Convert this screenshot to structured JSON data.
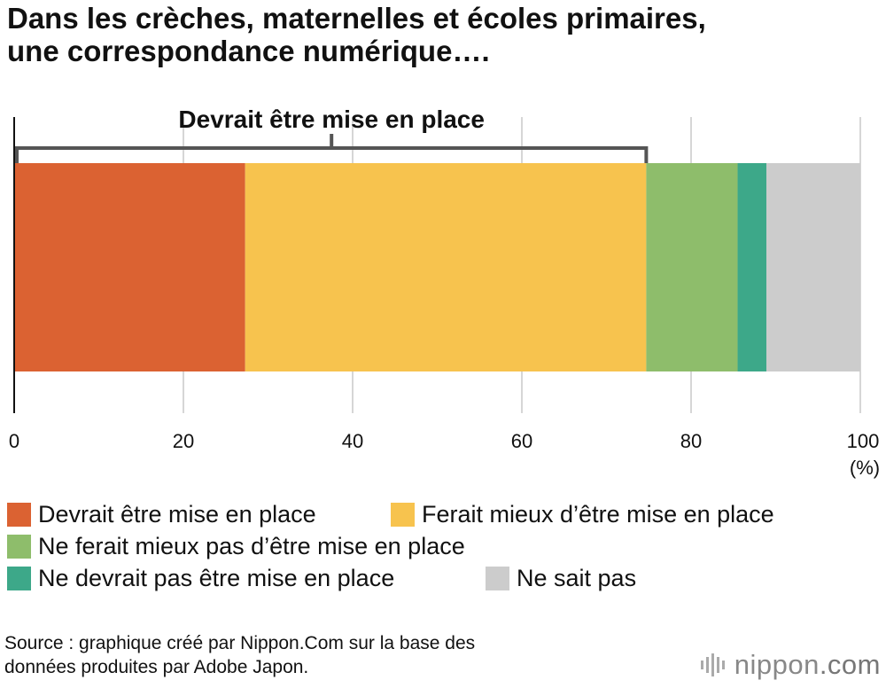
{
  "title": {
    "line1": "Dans les crèches, maternelles et écoles primaires,",
    "line2": "une correspondance numérique…."
  },
  "chart_data": {
    "type": "bar",
    "orientation": "horizontal",
    "stacked": true,
    "categories": [
      ""
    ],
    "series": [
      {
        "name": "Devrait être mise en place",
        "values": [
          27.3
        ],
        "color": "#db6232"
      },
      {
        "name": "Ferait mieux d’être mise en place",
        "values": [
          47.4
        ],
        "color": "#f7c34e"
      },
      {
        "name": "Ne ferait mieux pas d’être mise en place",
        "values": [
          10.8
        ],
        "color": "#8ebd6b"
      },
      {
        "name": "Ne devrait pas être mise en place",
        "values": [
          3.4
        ],
        "color": "#3da889"
      },
      {
        "name": "Ne sait pas",
        "values": [
          11.1
        ],
        "color": "#cccccc"
      }
    ],
    "xlim": [
      0,
      100
    ],
    "x_ticks": [
      0,
      20,
      40,
      60,
      80,
      100
    ],
    "x_ticks_labels": [
      "0",
      "20",
      "40",
      "60",
      "80",
      "100"
    ],
    "x_unit": "(%)",
    "grid": true,
    "annotation": {
      "label": "Devrait être mise en place",
      "from": 0,
      "to": 74.7
    }
  },
  "legend": {
    "rows": [
      [
        0,
        1
      ],
      [
        2
      ],
      [
        3,
        4
      ]
    ]
  },
  "source": {
    "line1": "Source : graphique créé par Nippon.Com sur la base des",
    "line2": "données produites par Adobe Japon."
  },
  "logo": {
    "name": "nippon",
    "suffix": ".com"
  }
}
